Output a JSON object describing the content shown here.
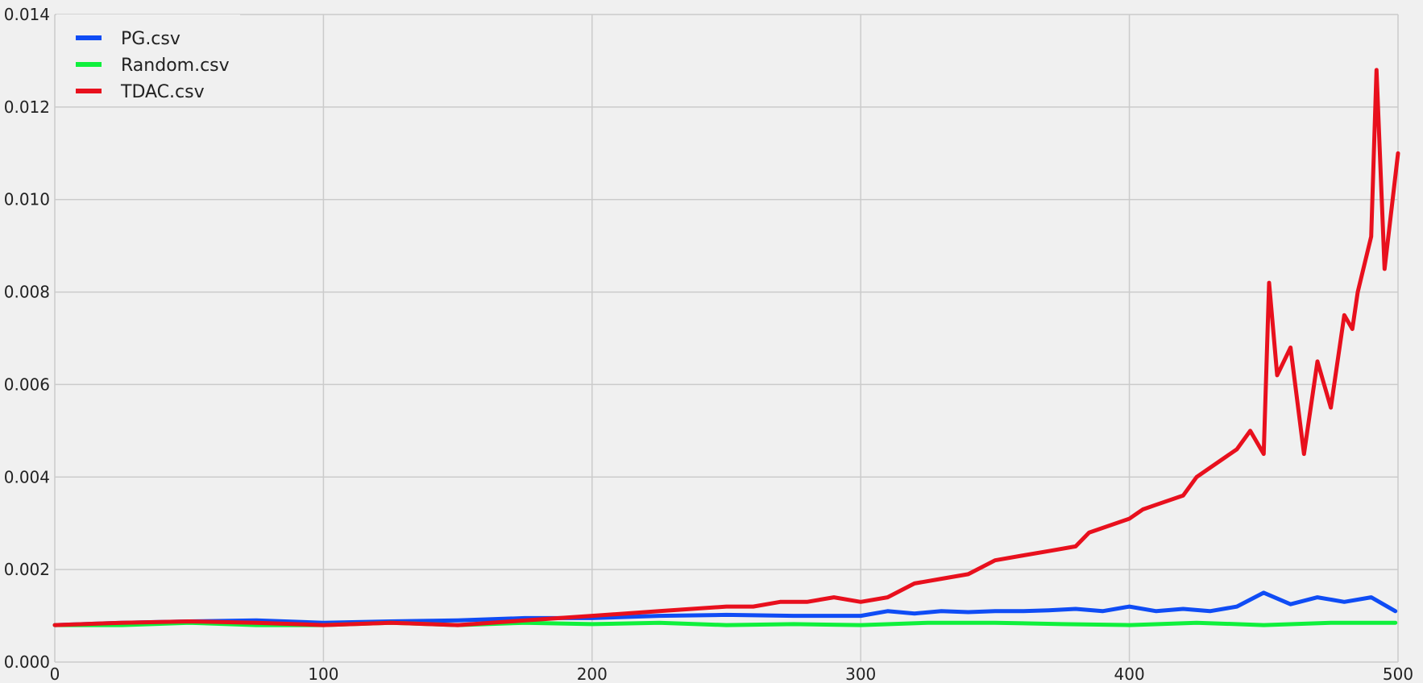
{
  "chart_data": {
    "type": "line",
    "title": "",
    "xlabel": "",
    "ylabel": "",
    "xlim": [
      0,
      500
    ],
    "ylim": [
      0,
      0.014
    ],
    "x_ticks": [
      0,
      100,
      200,
      300,
      400,
      500
    ],
    "y_ticks": [
      0.0,
      0.002,
      0.004,
      0.006,
      0.008,
      0.01,
      0.012,
      0.014
    ],
    "y_tick_labels": [
      "0.000",
      "0.002",
      "0.004",
      "0.006",
      "0.008",
      "0.010",
      "0.012",
      "0.014"
    ],
    "grid": true,
    "legend_position": "top-left",
    "series": [
      {
        "name": "PG.csv",
        "color": "#0f4cf5",
        "x": [
          0,
          25,
          50,
          75,
          100,
          125,
          150,
          175,
          200,
          225,
          250,
          275,
          300,
          310,
          320,
          330,
          340,
          350,
          360,
          370,
          380,
          390,
          400,
          410,
          420,
          430,
          440,
          450,
          460,
          470,
          480,
          490,
          499
        ],
        "values": [
          0.0008,
          0.00085,
          0.00088,
          0.0009,
          0.00085,
          0.00088,
          0.0009,
          0.00095,
          0.00095,
          0.001,
          0.00102,
          0.001,
          0.001,
          0.0011,
          0.00105,
          0.0011,
          0.00108,
          0.0011,
          0.0011,
          0.00112,
          0.00115,
          0.0011,
          0.0012,
          0.0011,
          0.00115,
          0.0011,
          0.0012,
          0.0015,
          0.00125,
          0.0014,
          0.0013,
          0.0014,
          0.0011
        ]
      },
      {
        "name": "Random.csv",
        "color": "#0ff03c",
        "x": [
          0,
          25,
          50,
          75,
          100,
          125,
          150,
          175,
          200,
          225,
          250,
          275,
          300,
          325,
          350,
          375,
          400,
          425,
          450,
          475,
          499
        ],
        "values": [
          0.0008,
          0.0008,
          0.00085,
          0.0008,
          0.0008,
          0.00085,
          0.0008,
          0.00085,
          0.00082,
          0.00085,
          0.0008,
          0.00082,
          0.0008,
          0.00085,
          0.00085,
          0.00082,
          0.0008,
          0.00085,
          0.0008,
          0.00085,
          0.00085
        ]
      },
      {
        "name": "TDAC.csv",
        "color": "#e8101d",
        "x": [
          0,
          25,
          50,
          75,
          100,
          125,
          150,
          175,
          200,
          225,
          250,
          260,
          270,
          280,
          290,
          300,
          310,
          320,
          330,
          340,
          350,
          360,
          370,
          380,
          385,
          390,
          400,
          405,
          410,
          420,
          425,
          430,
          440,
          445,
          450,
          452,
          455,
          460,
          465,
          470,
          475,
          480,
          483,
          485,
          490,
          492,
          495,
          500
        ],
        "values": [
          0.0008,
          0.00085,
          0.00088,
          0.00085,
          0.0008,
          0.00085,
          0.0008,
          0.0009,
          0.001,
          0.0011,
          0.0012,
          0.0012,
          0.0013,
          0.0013,
          0.0014,
          0.0013,
          0.0014,
          0.0017,
          0.0018,
          0.0019,
          0.0022,
          0.0023,
          0.0024,
          0.0025,
          0.0028,
          0.0029,
          0.0031,
          0.0033,
          0.0034,
          0.0036,
          0.004,
          0.0042,
          0.0046,
          0.005,
          0.0045,
          0.0082,
          0.0062,
          0.0068,
          0.0045,
          0.0065,
          0.0055,
          0.0075,
          0.0072,
          0.008,
          0.0092,
          0.0128,
          0.0085,
          0.011
        ]
      }
    ]
  }
}
